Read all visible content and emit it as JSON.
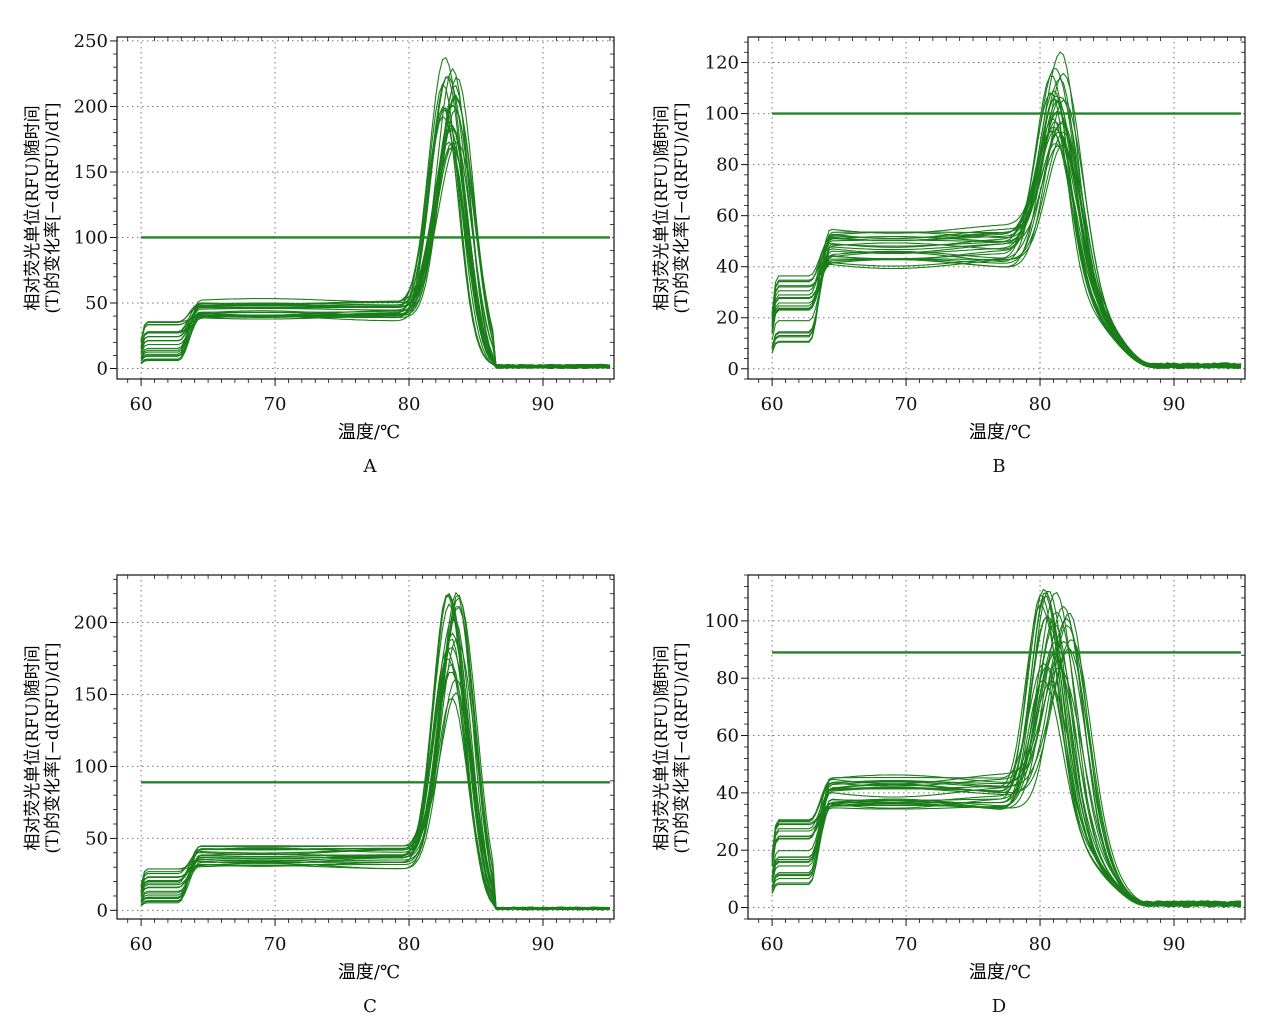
{
  "colors": {
    "curve": "#1a7d1a",
    "threshold": "#238423",
    "axis": "#111111",
    "grid": "#777777"
  },
  "chart_data": [
    {
      "panel_label": "A",
      "type": "line",
      "xlabel": "温度/℃",
      "ylabel_line1": "相对荧光单位(RFU)随时间",
      "ylabel_line2": "(T)的变化率[−d(RFU)/dT]",
      "xlim": [
        58.2,
        95.3
      ],
      "ylim": [
        -8,
        253
      ],
      "xticks": [
        60,
        70,
        80,
        90
      ],
      "yticks": [
        0,
        50,
        100,
        150,
        200,
        250
      ],
      "grid": true,
      "legend": "none",
      "threshold": 100,
      "curve_family": {
        "count": 24,
        "start_low": 5,
        "start_high": 36,
        "step_temp": 63,
        "plateau_low": 38,
        "plateau_high": 53,
        "rise_start": 79,
        "peak_temp": 83,
        "peak_spread": 0.6,
        "peak_low": 168,
        "peak_high": 241,
        "drop_end": 86.5,
        "tail_level": 2,
        "end_temp": 95
      }
    },
    {
      "panel_label": "B",
      "type": "line",
      "xlabel": "温度/℃",
      "ylabel_line1": "相对荧光单位(RFU)随时间",
      "ylabel_line2": "(T)的变化率[−d(RFU)/dT]",
      "xlim": [
        58.2,
        95.3
      ],
      "ylim": [
        -4,
        130
      ],
      "xticks": [
        60,
        70,
        80,
        90
      ],
      "yticks": [
        0,
        20,
        40,
        60,
        80,
        100,
        120
      ],
      "grid": true,
      "legend": "none",
      "threshold": 100,
      "curve_family": {
        "count": 26,
        "start_low": 10,
        "start_high": 40,
        "step_temp": 63,
        "plateau_low": 41,
        "plateau_high": 57,
        "rise_start": 77,
        "peak_temp": 81.3,
        "peak_spread": 0.5,
        "peak_low": 86,
        "peak_high": 126,
        "drop_end": 88.5,
        "tail_level": 1.5,
        "end_temp": 95
      }
    },
    {
      "panel_label": "C",
      "type": "line",
      "xlabel": "温度/℃",
      "ylabel_line1": "相对荧光单位(RFU)随时间",
      "ylabel_line2": "(T)的变化率[−d(RFU)/dT]",
      "xlim": [
        58.2,
        95.3
      ],
      "ylim": [
        -6,
        233
      ],
      "xticks": [
        60,
        70,
        80,
        90
      ],
      "yticks": [
        0,
        50,
        100,
        150,
        200
      ],
      "grid": true,
      "legend": "none",
      "threshold": 89,
      "curve_family": {
        "count": 22,
        "start_low": 5,
        "start_high": 31,
        "step_temp": 63,
        "plateau_low": 29,
        "plateau_high": 45,
        "rise_start": 79.5,
        "peak_temp": 83.2,
        "peak_spread": 0.5,
        "peak_low": 146,
        "peak_high": 226,
        "drop_end": 86.5,
        "tail_level": 1.5,
        "end_temp": 95
      }
    },
    {
      "panel_label": "D",
      "type": "line",
      "xlabel": "温度/℃",
      "ylabel_line1": "相对荧光单位(RFU)随时间",
      "ylabel_line2": "(T)的变化率[−d(RFU)/dT]",
      "xlim": [
        58.2,
        95.3
      ],
      "ylim": [
        -4,
        116
      ],
      "xticks": [
        60,
        70,
        80,
        90
      ],
      "yticks": [
        0,
        20,
        40,
        60,
        80,
        100
      ],
      "grid": true,
      "legend": "none",
      "threshold": 89,
      "curve_family": {
        "count": 26,
        "start_low": 6,
        "start_high": 32,
        "step_temp": 63,
        "plateau_low": 34,
        "plateau_high": 46,
        "rise_start": 77,
        "peak_temp": 81.2,
        "peak_spread": 1.2,
        "peak_low": 78,
        "peak_high": 111,
        "drop_end": 88,
        "tail_level": 1.5,
        "end_temp": 95
      }
    }
  ]
}
